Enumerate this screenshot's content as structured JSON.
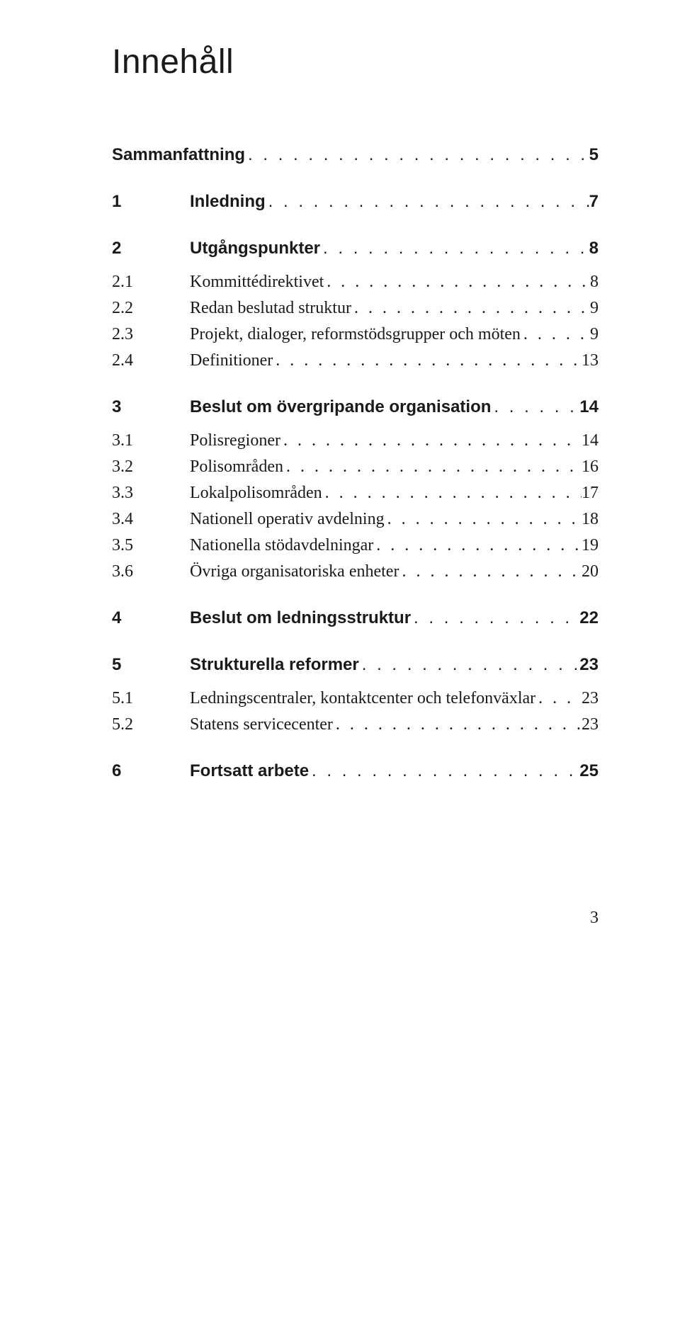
{
  "document": {
    "title": "Innehåll",
    "page_number": "3",
    "background_color": "#ffffff",
    "text_color": "#1a1a1a",
    "title_font_family": "Helvetica Neue, Arial, sans-serif",
    "title_font_size_pt": 36,
    "heading_font_family": "Helvetica Neue, Arial, sans-serif",
    "heading_font_size_pt": 18,
    "body_font_family": "Georgia, Times New Roman, serif",
    "body_font_size_pt": 18
  },
  "toc": [
    {
      "level": 1,
      "num": "",
      "label": "Sammanfattning",
      "page": "5",
      "no_num": true
    },
    {
      "level": 1,
      "num": "1",
      "label": "Inledning",
      "page": "7"
    },
    {
      "level": 1,
      "num": "2",
      "label": "Utgångspunkter",
      "page": "8"
    },
    {
      "level": 2,
      "num": "2.1",
      "label": "Kommittédirektivet",
      "page": "8"
    },
    {
      "level": 2,
      "num": "2.2",
      "label": "Redan beslutad struktur",
      "page": "9"
    },
    {
      "level": 2,
      "num": "2.3",
      "label": "Projekt, dialoger, reformstödsgrupper och möten",
      "page": "9"
    },
    {
      "level": 2,
      "num": "2.4",
      "label": "Definitioner",
      "page": "13"
    },
    {
      "level": 1,
      "num": "3",
      "label": "Beslut om övergripande organisation",
      "page": "14"
    },
    {
      "level": 2,
      "num": "3.1",
      "label": "Polisregioner",
      "page": "14"
    },
    {
      "level": 2,
      "num": "3.2",
      "label": "Polisområden",
      "page": "16"
    },
    {
      "level": 2,
      "num": "3.3",
      "label": "Lokalpolisområden",
      "page": "17"
    },
    {
      "level": 2,
      "num": "3.4",
      "label": "Nationell operativ avdelning",
      "page": "18"
    },
    {
      "level": 2,
      "num": "3.5",
      "label": "Nationella stödavdelningar",
      "page": "19"
    },
    {
      "level": 2,
      "num": "3.6",
      "label": "Övriga organisatoriska enheter",
      "page": "20"
    },
    {
      "level": 1,
      "num": "4",
      "label": "Beslut om ledningsstruktur",
      "page": "22"
    },
    {
      "level": 1,
      "num": "5",
      "label": "Strukturella reformer",
      "page": "23"
    },
    {
      "level": 2,
      "num": "5.1",
      "label": "Ledningscentraler, kontaktcenter och telefonväxlar",
      "page": "23"
    },
    {
      "level": 2,
      "num": "5.2",
      "label": "Statens servicecenter",
      "page": "23"
    },
    {
      "level": 1,
      "num": "6",
      "label": "Fortsatt arbete",
      "page": "25"
    }
  ]
}
